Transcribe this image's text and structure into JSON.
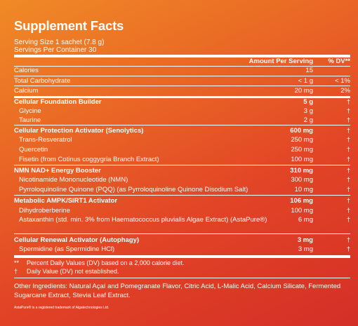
{
  "label": {
    "title": "Supplement Facts",
    "serving_size": "Serving Size 1 sachet (7.8 g)",
    "servings_per_container": "Servings Per Container 30",
    "header_amount": "Amount Per Serving",
    "header_dv": "% DV**",
    "rows": [
      {
        "name": "Calories",
        "amount": "15",
        "dv": ""
      },
      {
        "name": "Total Carbohydrate",
        "amount": "< 1 g",
        "dv": "< 1%"
      },
      {
        "name": "Calcium",
        "amount": "20 mg",
        "dv": "2%"
      },
      {
        "name": "Cellular Foundation Builder",
        "amount": "5 g",
        "dv": "†"
      },
      {
        "name": "Glycine",
        "amount": "3 g",
        "dv": "†"
      },
      {
        "name": "Taurine",
        "amount": "2 g",
        "dv": "†"
      },
      {
        "name": "Cellular Protection Activator (Senolytics)",
        "amount": "600 mg",
        "dv": "†"
      },
      {
        "name": "Trans-Resveratrol",
        "amount": "250 mg",
        "dv": "†"
      },
      {
        "name": "Quercetin",
        "amount": "250 mg",
        "dv": "†"
      },
      {
        "name": "Fisetin (from Cotinus coggygria Branch Extract)",
        "amount": "100 mg",
        "dv": "†"
      },
      {
        "name": "NMN NAD+ Energy Booster",
        "amount": "310 mg",
        "dv": "†"
      },
      {
        "name": "Nicotinamide Mononucleotide (NMN)",
        "amount": "300 mg",
        "dv": "†"
      },
      {
        "name": "Pyrroloquinoline Quinone (PQQ) (as Pyrroloquinoline Quinone Disodium Salt)",
        "amount": "10 mg",
        "dv": "†"
      },
      {
        "name": "Metabolic AMPK/SIRT1 Activator",
        "amount": "106 mg",
        "dv": "†"
      },
      {
        "name": "Dihydroberberine",
        "amount": "100 mg",
        "dv": "†"
      },
      {
        "name": "Astaxanthin (std. min. 3% from Haematococcus pluvialis Algae Extract) (AstaPure®)",
        "amount": "6 mg",
        "dv": "†"
      },
      {
        "name": "Cellular Renewal Activator (Autophagy)",
        "amount": "3 mg",
        "dv": "†"
      },
      {
        "name": "Spermidine (as Spermidine HCl)",
        "amount": "3 mg",
        "dv": "†"
      }
    ],
    "footnotes": [
      {
        "symbol": "**",
        "text": "Percent Daily Values (DV) based on a 2,000 calorie diet."
      },
      {
        "symbol": "†",
        "text": "Daily Value (DV) not established."
      }
    ],
    "other_ingredients": "Other Ingredients: Natural Açaí and Pomegranate Flavor, Citric Acid, L-Malic Acid, Calcium Silicate, Fermented Sugarcane Extract, Stevia Leaf Extract.",
    "trademark": "AstaPure® is a registered trademark of Algatechnologies Ltd."
  }
}
